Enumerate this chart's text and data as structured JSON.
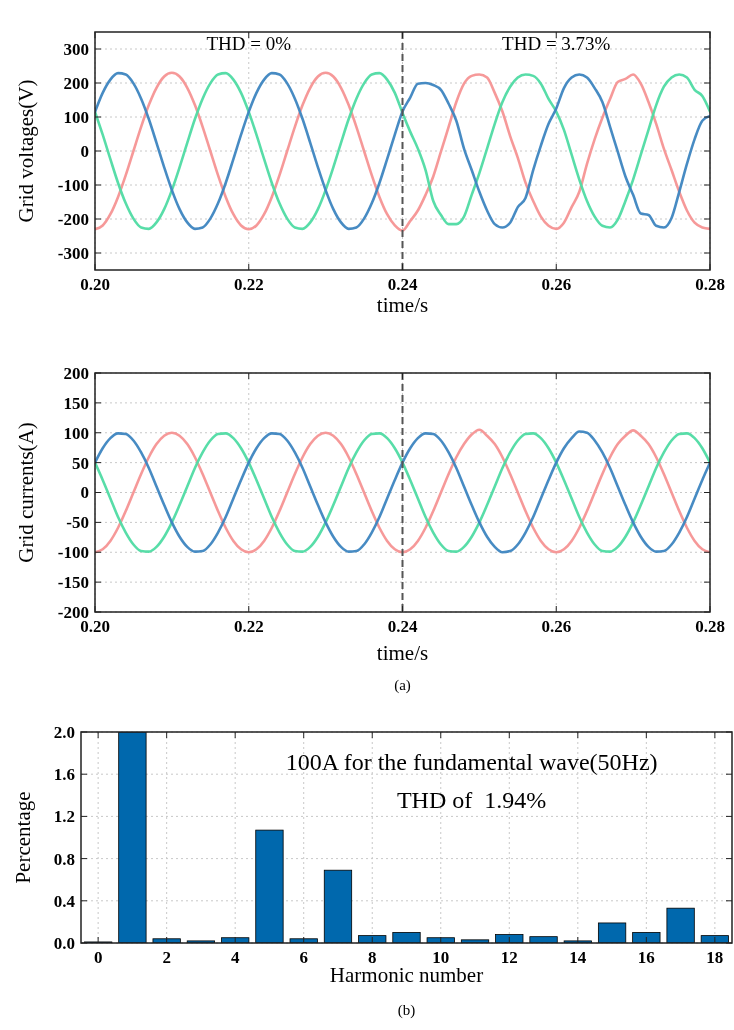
{
  "chart_data": [
    {
      "type": "line",
      "ylabel": "Grid voltages(V)",
      "xlabel": "time/s",
      "annotations": [
        "THD = 0%",
        "THD = 3.73%"
      ],
      "x": [
        0.2,
        0.201,
        0.202,
        0.203,
        0.204,
        0.205,
        0.206,
        0.207,
        0.208,
        0.209,
        0.21,
        0.211,
        0.212,
        0.213,
        0.214,
        0.215,
        0.216,
        0.217,
        0.218,
        0.219,
        0.22,
        0.221,
        0.222,
        0.223,
        0.224,
        0.225,
        0.226,
        0.227,
        0.228,
        0.229,
        0.23,
        0.231,
        0.232,
        0.233,
        0.234,
        0.235,
        0.236,
        0.237,
        0.238,
        0.239,
        0.24,
        0.241,
        0.242,
        0.243,
        0.244,
        0.245,
        0.246,
        0.247,
        0.248,
        0.249,
        0.25,
        0.251,
        0.252,
        0.253,
        0.254,
        0.255,
        0.256,
        0.257,
        0.258,
        0.259,
        0.26,
        0.261,
        0.262,
        0.263,
        0.264,
        0.265,
        0.266,
        0.267,
        0.268,
        0.269,
        0.27,
        0.271,
        0.272,
        0.273,
        0.274,
        0.275,
        0.276,
        0.277,
        0.278,
        0.279,
        0.28
      ],
      "series": [
        {
          "color": "#f59393",
          "values": [
            -230,
            -219,
            -186,
            -135,
            -71,
            0,
            71,
            135,
            186,
            219,
            230,
            219,
            186,
            135,
            71,
            0,
            -71,
            -135,
            -186,
            -219,
            -230,
            -219,
            -186,
            -135,
            -71,
            0,
            71,
            135,
            186,
            219,
            230,
            219,
            186,
            135,
            71,
            0,
            -71,
            -135,
            -186,
            -219,
            -234,
            -206,
            -175,
            -129,
            -75,
            -2,
            71,
            144,
            198,
            221,
            225,
            216,
            171,
            116,
            44,
            -20,
            -93,
            -147,
            -193,
            -220,
            -229,
            -211,
            -165,
            -120,
            -38,
            35,
            98,
            153,
            203,
            212,
            225,
            198,
            144,
            80,
            7,
            -56,
            -120,
            -175,
            -211,
            -225,
            -229
          ]
        },
        {
          "color": "#4fdba3",
          "values": [
            115,
            48,
            -24,
            -94,
            -154,
            -199,
            -225,
            -229,
            -210,
            -171,
            -115,
            -48,
            24,
            94,
            154,
            199,
            225,
            229,
            210,
            171,
            115,
            48,
            -24,
            -94,
            -154,
            -199,
            -225,
            -229,
            -210,
            -171,
            -115,
            -48,
            24,
            94,
            154,
            199,
            225,
            229,
            210,
            171,
            112,
            57,
            7,
            -56,
            -147,
            -188,
            -215,
            -215,
            -193,
            -129,
            -65,
            7,
            80,
            144,
            189,
            216,
            225,
            221,
            198,
            153,
            116,
            62,
            -11,
            -84,
            -147,
            -193,
            -220,
            -225,
            -202,
            -147,
            -84,
            -11,
            62,
            135,
            189,
            216,
            225,
            216,
            180,
            162,
            116
          ]
        },
        {
          "color": "#3d85c0",
          "values": [
            115,
            171,
            210,
            229,
            225,
            199,
            154,
            94,
            24,
            -48,
            -115,
            -171,
            -210,
            -229,
            -225,
            -199,
            -154,
            -94,
            -24,
            48,
            115,
            171,
            210,
            229,
            225,
            199,
            154,
            94,
            24,
            -48,
            -115,
            -171,
            -210,
            -229,
            -225,
            -199,
            -154,
            -94,
            -24,
            48,
            116,
            157,
            198,
            200,
            194,
            180,
            139,
            89,
            7,
            -56,
            -120,
            -175,
            -215,
            -225,
            -211,
            -165,
            -138,
            -56,
            16,
            80,
            125,
            185,
            216,
            225,
            216,
            185,
            144,
            71,
            -2,
            -75,
            -129,
            -184,
            -188,
            -220,
            -225,
            -197,
            -120,
            -38,
            35,
            89,
            103
          ]
        }
      ],
      "xlim": [
        0.2,
        0.28
      ],
      "xticks": [
        {
          "value": 0.2,
          "label": "0.20"
        },
        {
          "value": 0.22,
          "label": "0.22"
        },
        {
          "value": 0.24,
          "label": "0.24"
        },
        {
          "value": 0.26,
          "label": "0.26"
        },
        {
          "value": 0.28,
          "label": "0.28"
        }
      ],
      "ylim": [
        -350,
        350
      ],
      "yticks": [
        -300,
        -200,
        -100,
        0,
        100,
        200,
        300
      ],
      "grid": true,
      "line_style": "solid",
      "ref_lines": [
        {
          "axis": "x",
          "value": 0.24,
          "color": "#555555",
          "line_style": "dashed"
        }
      ]
    },
    {
      "type": "line",
      "ylabel": "Grid currents(A)",
      "xlabel": "time/s",
      "annotations": [
        "(a)"
      ],
      "x": [
        0.2,
        0.201,
        0.202,
        0.203,
        0.204,
        0.205,
        0.206,
        0.207,
        0.208,
        0.209,
        0.21,
        0.211,
        0.212,
        0.213,
        0.214,
        0.215,
        0.216,
        0.217,
        0.218,
        0.219,
        0.22,
        0.221,
        0.222,
        0.223,
        0.224,
        0.225,
        0.226,
        0.227,
        0.228,
        0.229,
        0.23,
        0.231,
        0.232,
        0.233,
        0.234,
        0.235,
        0.236,
        0.237,
        0.238,
        0.239,
        0.24,
        0.241,
        0.242,
        0.243,
        0.244,
        0.245,
        0.246,
        0.247,
        0.248,
        0.249,
        0.25,
        0.251,
        0.252,
        0.253,
        0.254,
        0.255,
        0.256,
        0.257,
        0.258,
        0.259,
        0.26,
        0.261,
        0.262,
        0.263,
        0.264,
        0.265,
        0.266,
        0.267,
        0.268,
        0.269,
        0.27,
        0.271,
        0.272,
        0.273,
        0.274,
        0.275,
        0.276,
        0.277,
        0.278,
        0.279,
        0.28
      ],
      "series": [
        {
          "color": "#f59393",
          "values": [
            -100,
            -95,
            -81,
            -59,
            -31,
            0,
            31,
            59,
            81,
            95,
            100,
            95,
            81,
            59,
            31,
            0,
            -31,
            -59,
            -81,
            -95,
            -100,
            -95,
            -81,
            -59,
            -31,
            0,
            31,
            59,
            81,
            95,
            100,
            95,
            81,
            59,
            31,
            0,
            -31,
            -59,
            -81,
            -95,
            -100,
            -95,
            -81,
            -59,
            -31,
            0,
            31,
            59,
            81,
            97,
            105,
            95,
            81,
            59,
            31,
            0,
            -31,
            -59,
            -81,
            -95,
            -100,
            -95,
            -81,
            -59,
            -31,
            0,
            31,
            59,
            81,
            95,
            104,
            95,
            81,
            59,
            31,
            0,
            -31,
            -59,
            -81,
            -95,
            -100
          ]
        },
        {
          "color": "#4fdba3",
          "values": [
            50,
            21,
            -10,
            -41,
            -67,
            -87,
            -98,
            -99,
            -91,
            -74,
            -50,
            -21,
            10,
            41,
            67,
            87,
            98,
            99,
            91,
            74,
            50,
            21,
            -10,
            -41,
            -67,
            -87,
            -98,
            -99,
            -91,
            -74,
            -50,
            -21,
            10,
            41,
            67,
            87,
            98,
            99,
            91,
            74,
            50,
            21,
            -10,
            -41,
            -67,
            -87,
            -98,
            -99,
            -91,
            -74,
            -50,
            -21,
            10,
            41,
            67,
            87,
            98,
            99,
            91,
            74,
            50,
            21,
            -10,
            -41,
            -67,
            -87,
            -98,
            -99,
            -91,
            -74,
            -50,
            -21,
            10,
            41,
            67,
            87,
            98,
            99,
            91,
            74,
            50
          ]
        },
        {
          "color": "#3d85c0",
          "values": [
            50,
            74,
            91,
            99,
            98,
            87,
            67,
            41,
            10,
            -21,
            -50,
            -74,
            -91,
            -99,
            -98,
            -87,
            -67,
            -41,
            -10,
            21,
            50,
            74,
            91,
            99,
            98,
            87,
            67,
            41,
            10,
            -21,
            -50,
            -74,
            -91,
            -99,
            -98,
            -87,
            -67,
            -41,
            -10,
            21,
            50,
            74,
            91,
            99,
            98,
            87,
            67,
            41,
            10,
            -21,
            -50,
            -74,
            -91,
            -100,
            -98,
            -87,
            -67,
            -41,
            -10,
            21,
            50,
            74,
            91,
            102,
            100,
            87,
            67,
            41,
            10,
            -21,
            -50,
            -74,
            -91,
            -99,
            -98,
            -87,
            -67,
            -41,
            -10,
            21,
            50
          ]
        }
      ],
      "xlim": [
        0.2,
        0.28
      ],
      "xticks": [
        {
          "value": 0.2,
          "label": "0.20"
        },
        {
          "value": 0.22,
          "label": "0.22"
        },
        {
          "value": 0.24,
          "label": "0.24"
        },
        {
          "value": 0.26,
          "label": "0.26"
        },
        {
          "value": 0.28,
          "label": "0.28"
        }
      ],
      "ylim": [
        -200,
        200
      ],
      "yticks": [
        -200,
        -150,
        -100,
        -50,
        0,
        50,
        100,
        150,
        200
      ],
      "grid": true,
      "line_style": "solid",
      "ref_lines": [
        {
          "axis": "x",
          "value": 0.24,
          "color": "#555555",
          "line_style": "dashed"
        }
      ]
    },
    {
      "type": "bar",
      "ylabel": "Percentage",
      "xlabel": "Harmonic number",
      "annotations": [
        "100A for the fundamental wave(50Hz)",
        "THD of  1.94%",
        "(b)"
      ],
      "x": [
        0,
        1,
        2,
        3,
        4,
        5,
        6,
        7,
        8,
        9,
        10,
        11,
        12,
        13,
        14,
        15,
        16,
        17,
        18
      ],
      "values": [
        0.01,
        2.0,
        0.04,
        0.02,
        0.05,
        1.07,
        0.04,
        0.69,
        0.07,
        0.1,
        0.05,
        0.03,
        0.08,
        0.06,
        0.02,
        0.19,
        0.1,
        0.33,
        0.07
      ],
      "color": "#0068ad",
      "xlim": [
        -0.5,
        18.5
      ],
      "xticks": [
        0,
        2,
        4,
        6,
        8,
        10,
        12,
        14,
        16,
        18
      ],
      "ylim": [
        0,
        2
      ],
      "yticks": [
        {
          "value": 0,
          "label": "0.0"
        },
        {
          "value": 0.4,
          "label": "0.4"
        },
        {
          "value": 0.8,
          "label": "0.8"
        },
        {
          "value": 1.2,
          "label": "1.2"
        },
        {
          "value": 1.6,
          "label": "1.6"
        },
        {
          "value": 2,
          "label": "2.0"
        }
      ],
      "grid": true
    }
  ]
}
